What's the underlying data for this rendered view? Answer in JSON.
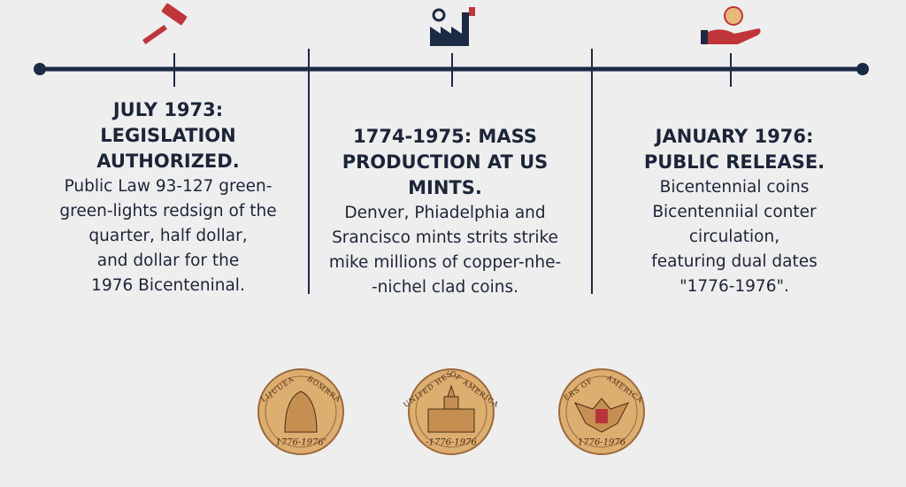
{
  "events": [
    {
      "title_lines": [
        "JULY 1973:",
        "LEGISLATION",
        "AUTHORIZED."
      ],
      "body_lines": [
        "Public Law 93-127 green-",
        "green-lights redsign of the",
        "quarter, half dollar,",
        "and dollar for the",
        "1976 Bicenteninal."
      ]
    },
    {
      "title_lines": [
        "1774-1975: MASS",
        "PRODUCTION AT US",
        "MINTS."
      ],
      "body_lines": [
        "Denver, Phiadelphia and",
        "Srancisco mints strits strike",
        "mike millions of copper-nhe-",
        "-nichel clad coins."
      ]
    },
    {
      "title_lines": [
        "JANUARY 1976:",
        "PUBLIC RELEASE."
      ],
      "body_lines": [
        "Bicentennial coins",
        "Bicentenniial conter",
        "circulation,",
        "featuring dual dates",
        "\"1776-1976\"."
      ]
    }
  ],
  "coins": [
    {
      "legend_left": "LIJUUEA",
      "legend_right": "BOMRRA",
      "date": "1776-1976'"
    },
    {
      "legend_left": "UNITED HES",
      "legend_right": "OF AMERICA",
      "date": "-1776-1976"
    },
    {
      "legend_left": "ERS OF",
      "legend_right": "AMERICA",
      "date": "1776-1976"
    }
  ]
}
